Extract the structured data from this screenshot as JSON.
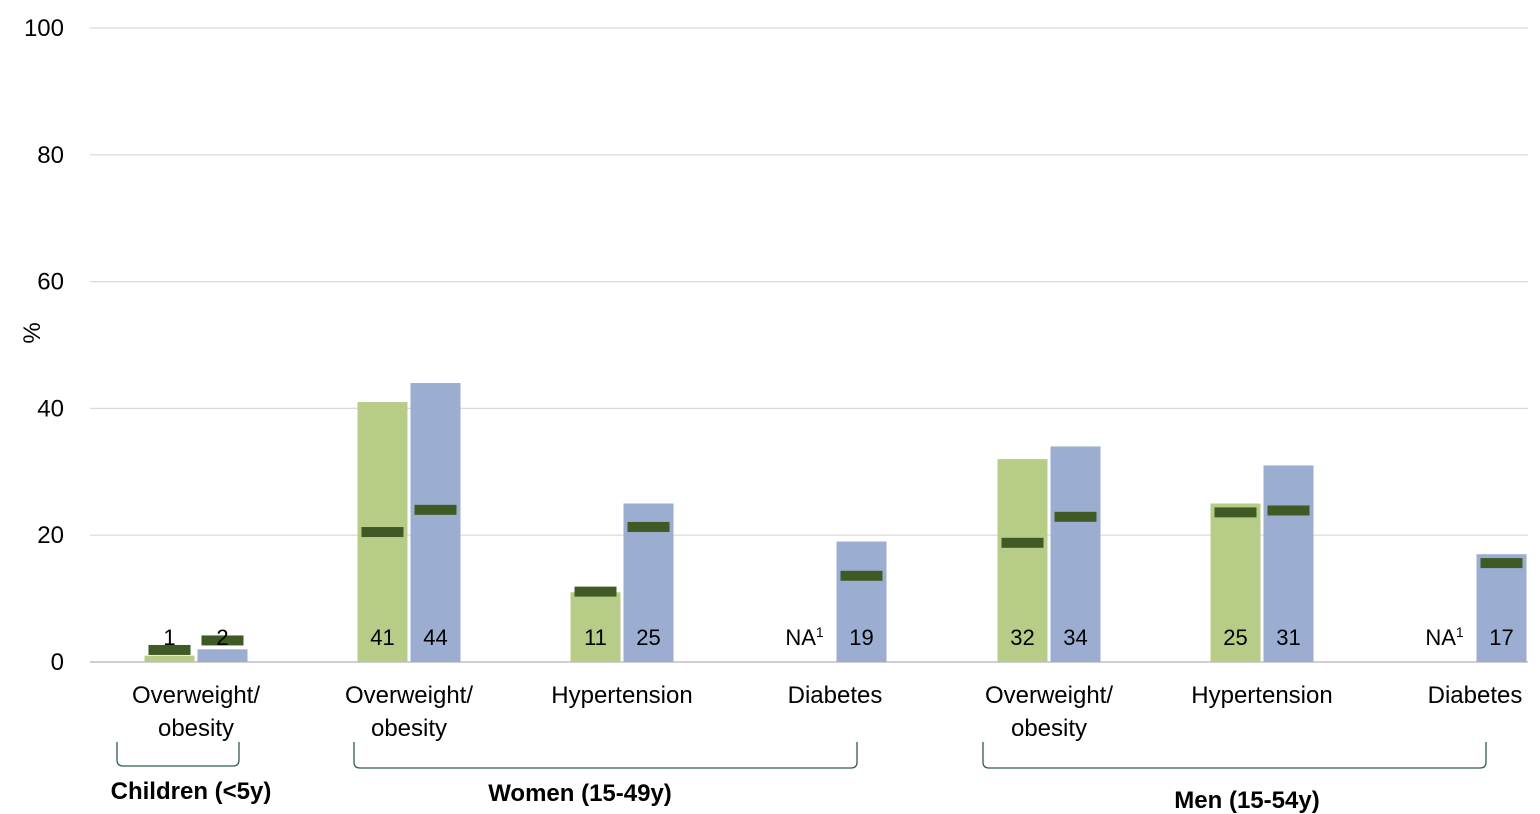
{
  "chart_data": {
    "type": "bar",
    "ylabel": "%",
    "ylim": [
      0,
      100
    ],
    "yticks": [
      0,
      20,
      40,
      60,
      80,
      100
    ],
    "grid": true,
    "categories": [
      {
        "label": [
          "Overweight/",
          "obesity"
        ],
        "group": 0
      },
      {
        "label": [
          "Overweight/",
          "obesity"
        ],
        "group": 1
      },
      {
        "label": [
          "Hypertension"
        ],
        "group": 1
      },
      {
        "label": [
          "Diabetes"
        ],
        "group": 1
      },
      {
        "label": [
          "Overweight/",
          "obesity"
        ],
        "group": 2
      },
      {
        "label": [
          "Hypertension"
        ],
        "group": 2
      },
      {
        "label": [
          "Diabetes"
        ],
        "group": 2
      }
    ],
    "groups": [
      "Children (<5y)",
      "Women (15-49y)",
      "Men (15-54y)"
    ],
    "series": [
      {
        "color": "#b7cc86",
        "values": [
          1,
          41,
          11,
          null,
          32,
          25,
          null
        ],
        "labels": [
          "1",
          "41",
          "11",
          "NA",
          "32",
          "25",
          "NA"
        ],
        "markers": [
          1.9,
          20.5,
          11.1,
          null,
          18.8,
          23.6,
          null
        ]
      },
      {
        "color": "#9badd1",
        "values": [
          2,
          44,
          25,
          19,
          34,
          31,
          17
        ],
        "labels": [
          "2",
          "44",
          "25",
          "19",
          "34",
          "31",
          "17"
        ],
        "markers": [
          3.4,
          24.0,
          21.3,
          13.6,
          22.9,
          23.9,
          15.6
        ]
      }
    ],
    "na_footnote": "1",
    "marker_color": "#3f5a24",
    "bracket_color": "#2e5c52"
  }
}
